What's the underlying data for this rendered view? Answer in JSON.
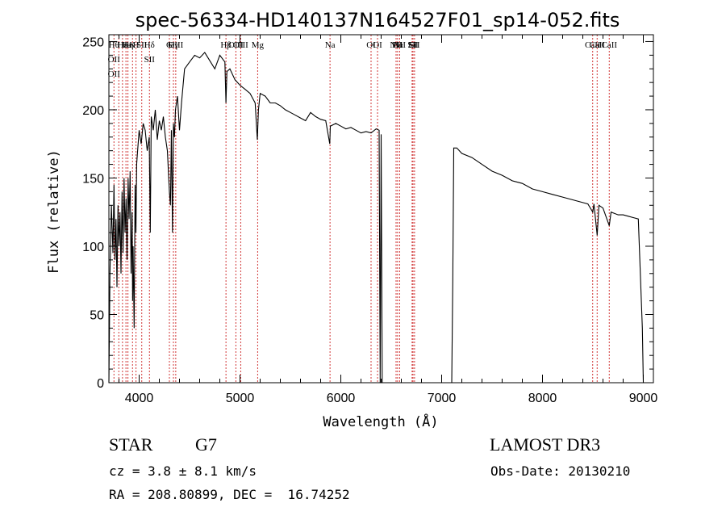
{
  "chart_data": {
    "type": "line",
    "title": "spec-56334-HD140137N164527F01_sp14-052.fits",
    "xlabel": "Wavelength (Å)",
    "ylabel": "Flux (relative)",
    "xlim": [
      3700,
      9100
    ],
    "ylim": [
      0,
      255
    ],
    "xticks": [
      4000,
      5000,
      6000,
      7000,
      8000,
      9000
    ],
    "yticks": [
      0,
      50,
      100,
      150,
      200,
      250
    ],
    "grid": false,
    "series": [
      {
        "x": [
          3700,
          3710,
          3725,
          3740,
          3750,
          3760,
          3770,
          3780,
          3790,
          3800,
          3810,
          3820,
          3830,
          3840,
          3850,
          3860,
          3870,
          3880,
          3890,
          3900,
          3910,
          3920,
          3930,
          3935,
          3940,
          3950,
          3960,
          3968,
          3975,
          3985,
          4000,
          4020,
          4040,
          4060,
          4080,
          4100,
          4110,
          4120,
          4140,
          4160,
          4180,
          4200,
          4220,
          4240,
          4260,
          4280,
          4300,
          4310,
          4320,
          4330,
          4340,
          4350,
          4360,
          4380,
          4400,
          4420,
          4450,
          4500,
          4550,
          4600,
          4650,
          4700,
          4750,
          4800,
          4850,
          4861,
          4870,
          4900,
          4950,
          5000,
          5050,
          5100,
          5150,
          5172,
          5183,
          5200,
          5250,
          5300,
          5350,
          5400,
          5450,
          5500,
          5550,
          5600,
          5650,
          5700,
          5750,
          5800,
          5850,
          5890,
          5896,
          5950,
          6000,
          6050,
          6100,
          6150,
          6200,
          6250,
          6300,
          6350,
          6380,
          6390,
          6400,
          6410,
          6420,
          6440,
          7100,
          7110,
          7120,
          7150,
          7200,
          7300,
          7400,
          7500,
          7600,
          7700,
          7800,
          7900,
          8000,
          8100,
          8200,
          8300,
          8400,
          8450,
          8498,
          8510,
          8542,
          8560,
          8600,
          8662,
          8680,
          8750,
          8800,
          8850,
          8900,
          8950,
          8990,
          9000
        ],
        "y": [
          0,
          80,
          130,
          95,
          145,
          90,
          120,
          70,
          130,
          100,
          125,
          80,
          140,
          95,
          150,
          110,
          135,
          90,
          150,
          120,
          155,
          80,
          125,
          60,
          100,
          40,
          145,
          110,
          160,
          170,
          185,
          175,
          190,
          185,
          170,
          180,
          110,
          195,
          185,
          200,
          178,
          192,
          185,
          195,
          180,
          170,
          140,
          130,
          185,
          110,
          190,
          180,
          200,
          210,
          185,
          205,
          230,
          235,
          240,
          238,
          242,
          236,
          230,
          240,
          235,
          205,
          228,
          230,
          222,
          218,
          215,
          212,
          205,
          178,
          200,
          212,
          210,
          205,
          205,
          203,
          200,
          198,
          196,
          194,
          192,
          198,
          195,
          193,
          192,
          175,
          188,
          190,
          188,
          186,
          187,
          185,
          183,
          184,
          183,
          186,
          185,
          0,
          182,
          0,
          0,
          0,
          0,
          75,
          172,
          172,
          168,
          165,
          160,
          155,
          152,
          148,
          146,
          142,
          140,
          138,
          136,
          134,
          132,
          131,
          125,
          131,
          108,
          130,
          128,
          115,
          125,
          123,
          123,
          122,
          121,
          120,
          40,
          0
        ]
      }
    ],
    "lines": [
      {
        "w": 3750,
        "labels": [
          "Hθ",
          "OII",
          "OII"
        ]
      },
      {
        "w": 3798,
        "labels": []
      },
      {
        "w": 3835,
        "labels": [
          "Hε"
        ]
      },
      {
        "w": 3869,
        "labels": [
          "He"
        ]
      },
      {
        "w": 3889,
        "labels": [
          "Hη"
        ]
      },
      {
        "w": 3934,
        "labels": [
          "K"
        ]
      },
      {
        "w": 3969,
        "labels": [
          "H"
        ]
      },
      {
        "w": 4026,
        "labels": [
          "SII"
        ]
      },
      {
        "w": 4102,
        "labels": [
          "Hδ",
          "SII"
        ]
      },
      {
        "w": 4300,
        "labels": [
          "G"
        ]
      },
      {
        "w": 4340,
        "labels": [
          "Hγ"
        ]
      },
      {
        "w": 4363,
        "labels": [
          "OIII"
        ]
      },
      {
        "w": 4861,
        "labels": [
          "Hβ"
        ]
      },
      {
        "w": 4959,
        "labels": [
          "OIII"
        ]
      },
      {
        "w": 5007,
        "labels": [
          "OIII"
        ]
      },
      {
        "w": 5175,
        "labels": [
          "Mg"
        ]
      },
      {
        "w": 5893,
        "labels": [
          "Na"
        ]
      },
      {
        "w": 6300,
        "labels": [
          "OI"
        ]
      },
      {
        "w": 6364,
        "labels": [
          "OI"
        ]
      },
      {
        "w": 6548,
        "labels": [
          "NII"
        ]
      },
      {
        "w": 6563,
        "labels": [
          "Hα"
        ]
      },
      {
        "w": 6583,
        "labels": [
          "NII"
        ]
      },
      {
        "w": 6707,
        "labels": [
          "Li"
        ]
      },
      {
        "w": 6716,
        "labels": [
          "SII"
        ]
      },
      {
        "w": 6731,
        "labels": [
          "SII"
        ]
      },
      {
        "w": 8498,
        "labels": [
          "CaII"
        ]
      },
      {
        "w": 8542,
        "labels": [
          "CaII"
        ]
      },
      {
        "w": 8662,
        "labels": [
          "CaII"
        ]
      }
    ],
    "line_colors": {
      "spectrum": "#000000",
      "marker": "#cc2222",
      "axes": "#000000"
    }
  },
  "info": {
    "class": "STAR",
    "subclass": "G7",
    "survey": "LAMOST DR3",
    "cz": "cz = 3.8 ± 8.1 km/s",
    "obs_date": "Obs-Date: 20130210",
    "radec": "RA = 208.80899, DEC =  16.74252"
  }
}
